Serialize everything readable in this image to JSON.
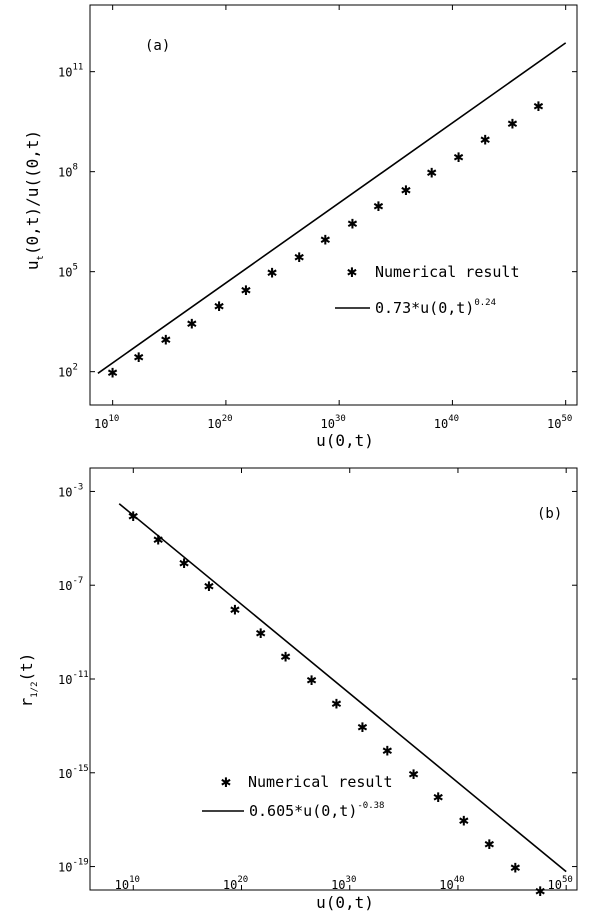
{
  "chart_data": [
    {
      "panel": "(a)",
      "type": "scatter",
      "xscale": "log",
      "yscale": "log",
      "xlabel": "u(0,t)",
      "ylabel": "u_t(0,t)/u((0,t)",
      "xlim": [
        100000000.0,
        1e+51
      ],
      "ylim": [
        10.0,
        10000000000000.0
      ],
      "xticks": [
        {
          "base": "10",
          "exp": "10"
        },
        {
          "base": "10",
          "exp": "20"
        },
        {
          "base": "10",
          "exp": "30"
        },
        {
          "base": "10",
          "exp": "40"
        },
        {
          "base": "10",
          "exp": "50"
        }
      ],
      "yticks": [
        {
          "base": "10",
          "exp": "2"
        },
        {
          "base": "10",
          "exp": "5"
        },
        {
          "base": "10",
          "exp": "8"
        },
        {
          "base": "10",
          "exp": "11"
        }
      ],
      "legend": {
        "position": "lower-right",
        "marker_label": "Numerical result",
        "line_label": "0.73*u(0,t)",
        "line_exp": "0.24"
      },
      "series": [
        {
          "name": "Numerical result",
          "marker": "asterisk",
          "x": [
            10000000000.0,
            2000000000000.0,
            500000000000000.0,
            1e+17,
            2.5e+19,
            6e+21,
            1.2e+24,
            3e+26,
            6e+28,
            1.5e+31,
            3e+33,
            8e+35,
            1.5e+38,
            3.5e+40,
            8e+42,
            2e+45,
            4e+47
          ],
          "y": [
            100.0,
            300.0,
            1000.0,
            3000.0,
            10000.0,
            30000.0,
            100000.0,
            300000.0,
            1000000.0,
            3000000.0,
            10000000.0,
            30000000.0,
            100000000.0,
            300000000.0,
            1000000000.0,
            3000000000.0,
            10000000000.0
          ]
        },
        {
          "name": "0.73*u(0,t)^0.24",
          "type": "line",
          "coef": 0.73,
          "exponent": 0.24,
          "x": [
            500000000.0,
            1e+50
          ]
        }
      ]
    },
    {
      "panel": "(b)",
      "type": "scatter",
      "xscale": "log",
      "yscale": "log",
      "xlabel": "u(0,t)",
      "ylabel": "r_1/2(t)",
      "xlim": [
        1000000.0,
        1e+51
      ],
      "ylim": [
        1e-20,
        0.01
      ],
      "xticks": [
        {
          "base": "10",
          "exp": "10"
        },
        {
          "base": "10",
          "exp": "20"
        },
        {
          "base": "10",
          "exp": "30"
        },
        {
          "base": "10",
          "exp": "40"
        },
        {
          "base": "10",
          "exp": "50"
        }
      ],
      "yticks": [
        {
          "base": "10",
          "exp": "-3"
        },
        {
          "base": "10",
          "exp": "-7"
        },
        {
          "base": "10",
          "exp": "-11"
        },
        {
          "base": "10",
          "exp": "-15"
        },
        {
          "base": "10",
          "exp": "-19"
        }
      ],
      "legend": {
        "position": "lower-right",
        "marker_label": "Numerical result",
        "line_label": "0.605*u(0,t)",
        "line_exp": "-0.38"
      },
      "series": [
        {
          "name": "Numerical result",
          "marker": "asterisk",
          "x": [
            10000000000.0,
            2000000000000.0,
            500000000000000.0,
            1e+17,
            2.5e+19,
            6e+21,
            1.2e+24,
            3e+26,
            6e+28,
            1.5e+31,
            3e+33,
            8e+35,
            1.5e+38,
            3.5e+40,
            8e+42,
            2e+45,
            4e+47
          ],
          "y": [
            0.0001,
            1e-05,
            1e-06,
            1e-07,
            1e-08,
            1e-09,
            1e-10,
            1e-11,
            1e-12,
            1e-13,
            1e-14,
            1e-15,
            1e-16,
            1e-17,
            1e-18,
            1e-19,
            1e-20
          ]
        },
        {
          "name": "0.605*u(0,t)^-0.38",
          "type": "line",
          "coef": 0.605,
          "exponent": -0.38,
          "x": [
            500000000.0,
            1e+50
          ]
        }
      ]
    }
  ]
}
